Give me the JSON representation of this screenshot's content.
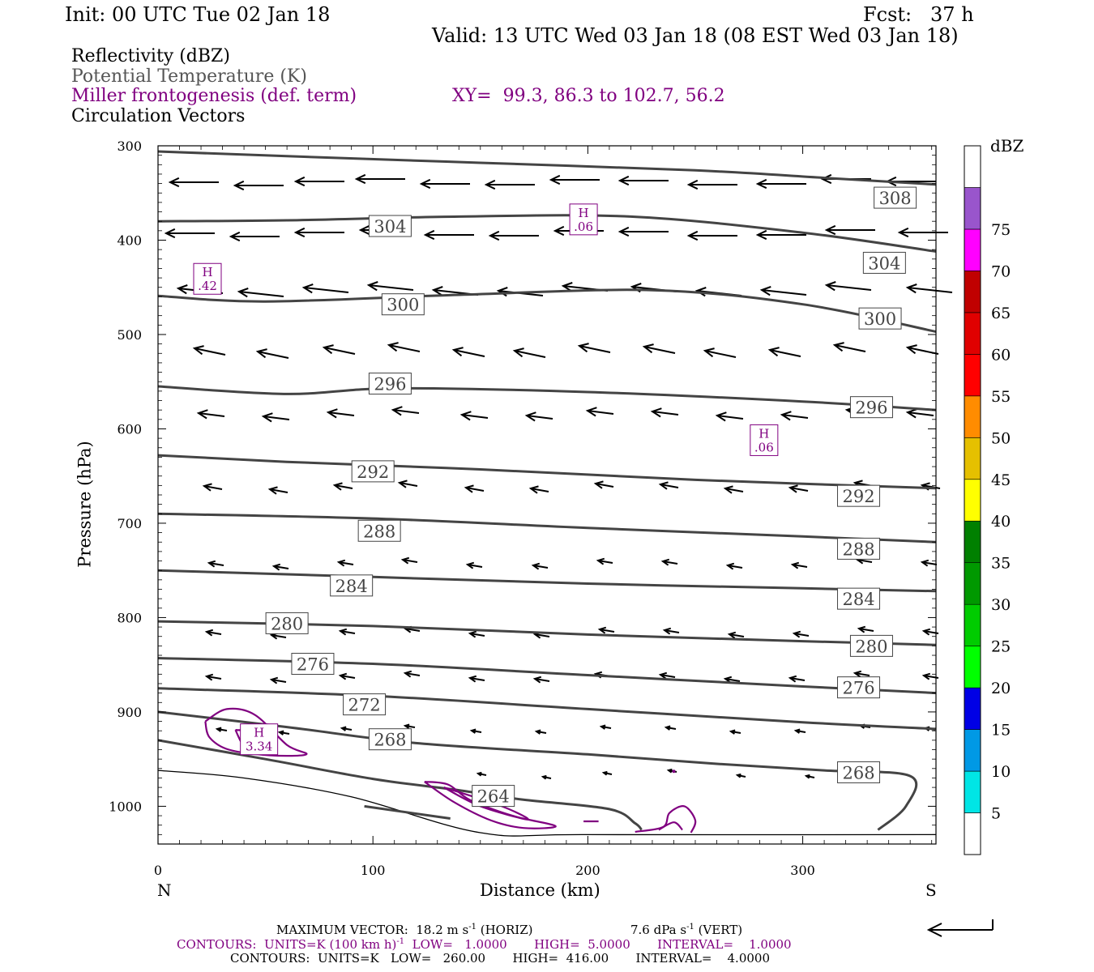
{
  "header": {
    "init": "Init: 00 UTC Tue 02 Jan 18",
    "fcst": "Fcst:   37 h",
    "valid": "Valid: 13 UTC Wed 03 Jan 18 (08 EST Wed 03 Jan 18)"
  },
  "legend": {
    "reflectivity": "Reflectivity (dBZ)",
    "theta": "Potential Temperature (K)",
    "miller": "Miller frontogenesis (def. term)",
    "xy": "XY=  99.3, 86.3 to 102.7, 56.2",
    "circulation": "Circulation Vectors"
  },
  "colors": {
    "theta": "#444444",
    "miller": "#800080",
    "vector": "#000000"
  },
  "chart_data": {
    "type": "cross-section",
    "xlabel": "Distance (km)",
    "ylabel": "Pressure (hPa)",
    "xlim": [
      0,
      362
    ],
    "ylim": [
      300,
      1040
    ],
    "xticks": [
      0,
      100,
      200,
      300
    ],
    "yticks": [
      300,
      400,
      500,
      600,
      700,
      800,
      900,
      1000
    ],
    "x_end_labels": {
      "left": "N",
      "right": "S"
    },
    "theta_contours": [
      {
        "label": "308",
        "points": [
          [
            0,
            306
          ],
          [
            60,
            311
          ],
          [
            150,
            318
          ],
          [
            250,
            326
          ],
          [
            310,
            334
          ],
          [
            362,
            341
          ]
        ],
        "labels_at": [
          [
            343,
            355
          ]
        ]
      },
      {
        "label": "304",
        "points": [
          [
            0,
            380
          ],
          [
            60,
            379
          ],
          [
            140,
            375
          ],
          [
            220,
            375
          ],
          [
            300,
            392
          ],
          [
            362,
            412
          ]
        ],
        "labels_at": [
          [
            108,
            385
          ],
          [
            338,
            424
          ]
        ]
      },
      {
        "label": "300",
        "points": [
          [
            0,
            459
          ],
          [
            50,
            465
          ],
          [
            140,
            458
          ],
          [
            230,
            453
          ],
          [
            300,
            468
          ],
          [
            362,
            497
          ]
        ],
        "labels_at": [
          [
            114,
            468
          ],
          [
            336,
            483
          ]
        ]
      },
      {
        "label": "296",
        "points": [
          [
            0,
            555
          ],
          [
            60,
            563
          ],
          [
            110,
            557
          ],
          [
            200,
            561
          ],
          [
            300,
            571
          ],
          [
            362,
            580
          ]
        ],
        "labels_at": [
          [
            108,
            552
          ],
          [
            332,
            577
          ]
        ]
      },
      {
        "label": "292",
        "points": [
          [
            0,
            628
          ],
          [
            60,
            635
          ],
          [
            150,
            643
          ],
          [
            250,
            654
          ],
          [
            362,
            663
          ]
        ],
        "labels_at": [
          [
            100,
            645
          ],
          [
            326,
            671
          ]
        ]
      },
      {
        "label": "288",
        "points": [
          [
            0,
            690
          ],
          [
            100,
            695
          ],
          [
            200,
            705
          ],
          [
            300,
            714
          ],
          [
            362,
            720
          ]
        ],
        "labels_at": [
          [
            103,
            708
          ],
          [
            326,
            727
          ]
        ]
      },
      {
        "label": "284",
        "points": [
          [
            0,
            750
          ],
          [
            100,
            757
          ],
          [
            200,
            764
          ],
          [
            300,
            769
          ],
          [
            362,
            772
          ]
        ],
        "labels_at": [
          [
            90,
            766
          ],
          [
            326,
            780
          ]
        ]
      },
      {
        "label": "280",
        "points": [
          [
            0,
            804
          ],
          [
            100,
            809
          ],
          [
            200,
            818
          ],
          [
            300,
            825
          ],
          [
            362,
            829
          ]
        ],
        "labels_at": [
          [
            60,
            806
          ],
          [
            332,
            830
          ]
        ]
      },
      {
        "label": "276",
        "points": [
          [
            0,
            843
          ],
          [
            100,
            849
          ],
          [
            200,
            861
          ],
          [
            300,
            873
          ],
          [
            362,
            880
          ]
        ],
        "labels_at": [
          [
            72,
            849
          ],
          [
            326,
            874
          ]
        ]
      },
      {
        "label": "272",
        "points": [
          [
            0,
            875
          ],
          [
            100,
            883
          ],
          [
            200,
            897
          ],
          [
            300,
            911
          ],
          [
            362,
            918
          ]
        ],
        "labels_at": [
          [
            96,
            892
          ]
        ]
      },
      {
        "label": "268",
        "points": [
          [
            0,
            900
          ],
          [
            60,
            916
          ],
          [
            120,
            933
          ],
          [
            200,
            945
          ],
          [
            260,
            955
          ],
          [
            310,
            962
          ],
          [
            350,
            968
          ],
          [
            348,
            1000
          ],
          [
            335,
            1025
          ]
        ],
        "labels_at": [
          [
            108,
            929
          ],
          [
            326,
            964
          ]
        ]
      },
      {
        "label": "264",
        "points": [
          [
            0,
            930
          ],
          [
            50,
            950
          ],
          [
            100,
            971
          ],
          [
            140,
            983
          ],
          [
            170,
            993
          ],
          [
            210,
            1003
          ],
          [
            222,
            1018
          ],
          [
            225,
            1025
          ]
        ],
        "labels_at": [
          [
            156,
            989
          ]
        ]
      }
    ],
    "miller_frontogenesis_maxima": [
      {
        "label": "H",
        "value": ".06",
        "x": 198,
        "p": 378
      },
      {
        "label": "H",
        "value": ".42",
        "x": 23,
        "p": 441
      },
      {
        "label": "H",
        "value": ".06",
        "x": 282,
        "p": 612
      },
      {
        "label": "H",
        "value": "3.34",
        "x": 47,
        "p": 929
      }
    ],
    "reflectivity_colorbar": {
      "units": "dBZ",
      "levels": [
        5,
        10,
        15,
        20,
        25,
        30,
        35,
        40,
        45,
        50,
        55,
        60,
        65,
        70,
        75
      ],
      "colors": [
        "#ffffff",
        "#00e5e5",
        "#0099e5",
        "#0000e5",
        "#00ff00",
        "#00cc00",
        "#009900",
        "#008000",
        "#ffff00",
        "#e5c000",
        "#ff8c00",
        "#ff0000",
        "#e00000",
        "#c00000",
        "#ff00ff",
        "#9955cc",
        "#ffffff"
      ]
    }
  },
  "footer": {
    "max_vector": "MAXIMUM VECTOR:  18.2 m s",
    "max_vector_exp": "-1",
    "max_vector_tail": " (HORIZ)",
    "max_vert": "7.6 dPa s",
    "max_vert_exp": "-1",
    "max_vert_tail": " (VERT)",
    "contours1": "CONTOURS:  UNITS=K (100 km h)",
    "contours1_exp": "-1",
    "contours1_tail": "  LOW=   1.0000       HIGH=  5.0000       INTERVAL=    1.0000",
    "contours2": "CONTOURS:  UNITS=K   LOW=   260.00       HIGH=  416.00       INTERVAL=    4.0000"
  }
}
